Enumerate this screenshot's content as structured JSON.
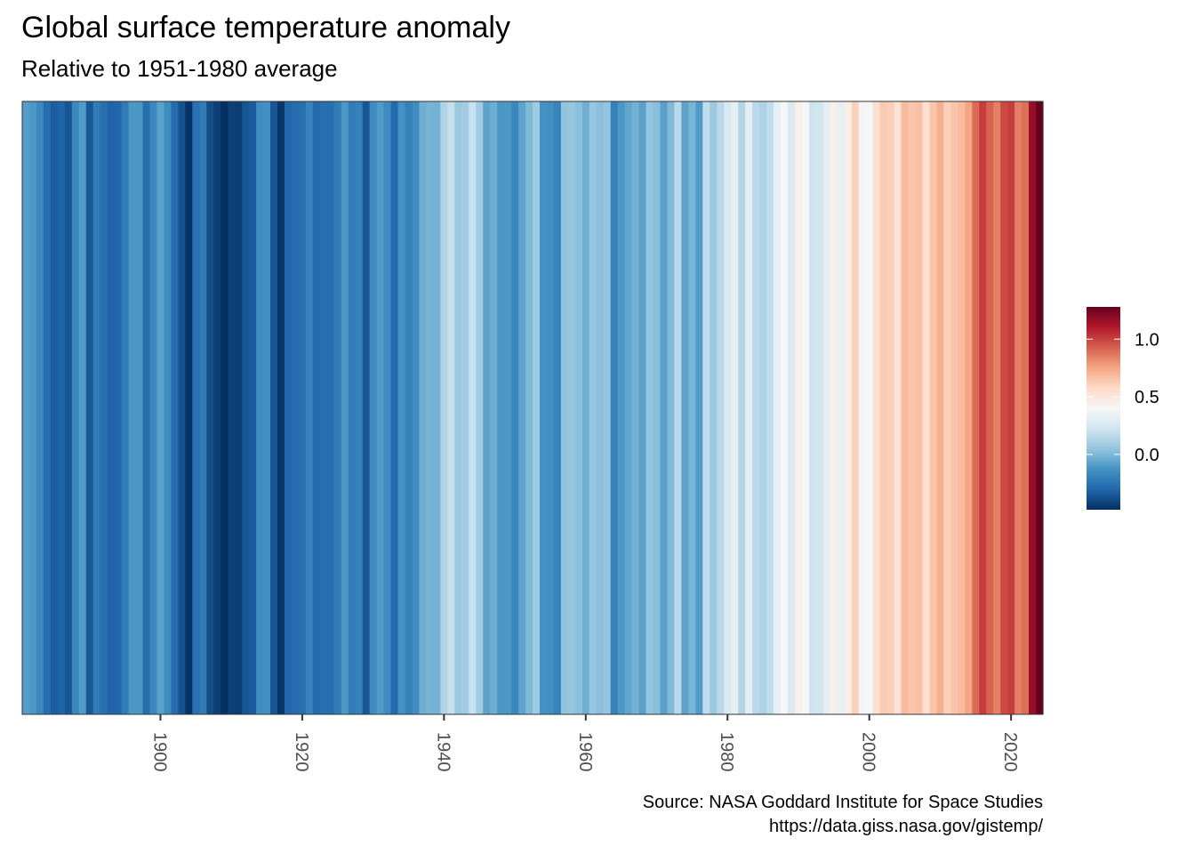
{
  "chart_data": {
    "type": "heatmap",
    "title": "Global surface temperature anomaly",
    "subtitle": "Relative to 1951-1980 average",
    "caption": [
      "Source: NASA Goddard Institute for Space Studies",
      "https://data.giss.nasa.gov/gistemp/"
    ],
    "xlabel": "",
    "ylabel": "",
    "x_start": 1881,
    "x_ticks": [
      1900,
      1920,
      1940,
      1960,
      1980,
      2000,
      2020
    ],
    "values": [
      -0.09,
      -0.11,
      -0.17,
      -0.28,
      -0.33,
      -0.31,
      -0.36,
      -0.17,
      -0.1,
      -0.35,
      -0.22,
      -0.27,
      -0.31,
      -0.3,
      -0.22,
      -0.11,
      -0.11,
      -0.27,
      -0.17,
      -0.08,
      -0.15,
      -0.28,
      -0.37,
      -0.47,
      -0.26,
      -0.22,
      -0.39,
      -0.43,
      -0.48,
      -0.43,
      -0.44,
      -0.36,
      -0.34,
      -0.15,
      -0.14,
      -0.36,
      -0.46,
      -0.3,
      -0.28,
      -0.27,
      -0.19,
      -0.29,
      -0.27,
      -0.27,
      -0.22,
      -0.11,
      -0.22,
      -0.2,
      -0.36,
      -0.16,
      -0.1,
      -0.16,
      -0.29,
      -0.13,
      -0.2,
      -0.15,
      -0.03,
      -0.01,
      -0.02,
      0.13,
      0.19,
      0.07,
      0.09,
      0.2,
      0.09,
      -0.07,
      -0.03,
      -0.11,
      -0.11,
      -0.17,
      -0.07,
      0.01,
      0.08,
      -0.13,
      -0.14,
      -0.19,
      0.05,
      0.06,
      0.03,
      -0.03,
      0.06,
      0.03,
      0.05,
      -0.2,
      -0.11,
      -0.06,
      -0.02,
      -0.08,
      0.05,
      0.03,
      -0.08,
      0.01,
      0.16,
      -0.07,
      -0.01,
      -0.1,
      0.18,
      0.07,
      0.16,
      0.26,
      0.32,
      0.14,
      0.31,
      0.16,
      0.12,
      0.18,
      0.32,
      0.39,
      0.27,
      0.45,
      0.4,
      0.22,
      0.23,
      0.31,
      0.45,
      0.33,
      0.46,
      0.61,
      0.38,
      0.39,
      0.54,
      0.63,
      0.62,
      0.53,
      0.68,
      0.64,
      0.66,
      0.54,
      0.65,
      0.72,
      0.61,
      0.65,
      0.68,
      0.75,
      0.9,
      1.01,
      0.92,
      0.85,
      0.98,
      1.01,
      0.85,
      0.89,
      1.17,
      1.28
    ],
    "color_scale": {
      "palette": [
        "#053061",
        "#2166AC",
        "#4393C3",
        "#92C5DE",
        "#D1E5F0",
        "#F7F7F7",
        "#FDDBC7",
        "#F4A582",
        "#D6604D",
        "#B2182B",
        "#67001F"
      ],
      "limits": [
        -0.48,
        1.28
      ]
    },
    "legend": {
      "position": "right",
      "ticks": [
        "0.0",
        "0.5",
        "1.0"
      ]
    }
  }
}
